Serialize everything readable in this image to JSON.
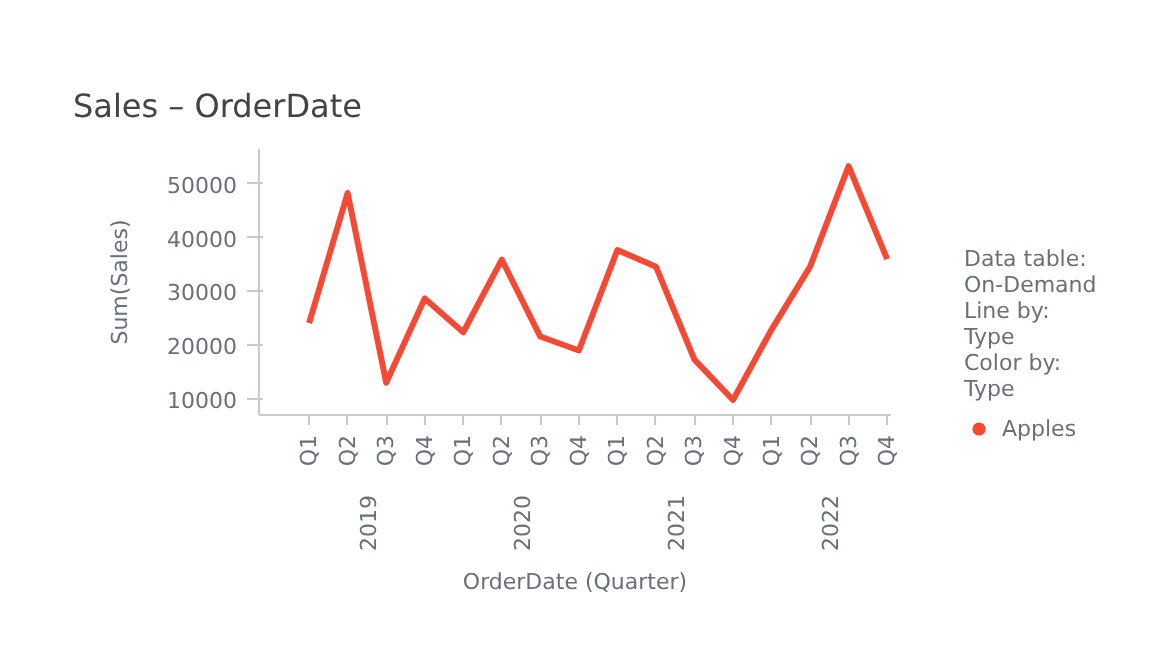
{
  "chart_data": {
    "type": "line",
    "title": "Sales – OrderDate",
    "xlabel": "OrderDate (Quarter)",
    "ylabel": "Sum(Sales)",
    "categories": [
      "Q1",
      "Q2",
      "Q3",
      "Q4",
      "Q1",
      "Q2",
      "Q3",
      "Q4",
      "Q1",
      "Q2",
      "Q3",
      "Q4",
      "Q1",
      "Q2",
      "Q3",
      "Q4"
    ],
    "series": [
      {
        "name": "Apples",
        "color": "#f44a35",
        "values": [
          24100,
          48300,
          13000,
          28700,
          22400,
          35900,
          21600,
          19000,
          37700,
          34600,
          17300,
          9800,
          22900,
          34600,
          53300,
          36000
        ]
      }
    ],
    "ylim": [
      7000,
      56500
    ],
    "yticks": [
      10000,
      20000,
      30000,
      40000,
      50000
    ],
    "grid": false,
    "legend": "right",
    "marker": "none",
    "line_style": "solid",
    "annotations": [
      "2019",
      "2020",
      "2021",
      "2022",
      "Data table:",
      "On-Demand",
      "Line by:",
      "Type",
      "Color by:",
      "Type"
    ]
  }
}
